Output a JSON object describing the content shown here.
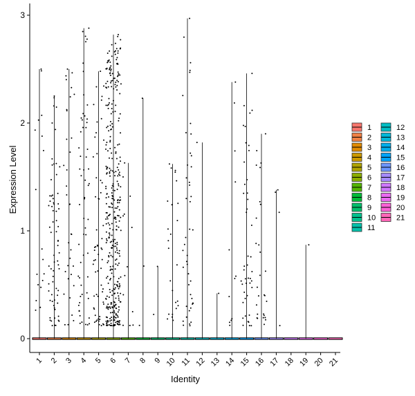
{
  "chart_data": {
    "type": "violin",
    "title": "",
    "xlabel": "Identity",
    "ylabel": "Expression Level",
    "ylim": [
      0,
      3
    ],
    "yticks": [
      0,
      1,
      2,
      3
    ],
    "categories": [
      "1",
      "2",
      "3",
      "4",
      "5",
      "6",
      "7",
      "8",
      "9",
      "10",
      "11",
      "12",
      "13",
      "14",
      "15",
      "16",
      "17",
      "18",
      "19",
      "20",
      "21"
    ],
    "max_expression": [
      2.5,
      2.25,
      2.5,
      2.88,
      2.48,
      2.82,
      1.63,
      2.23,
      0.67,
      1.62,
      2.97,
      1.82,
      0.42,
      2.38,
      2.46,
      1.9,
      1.38,
      0.0,
      0.87,
      0.0,
      0.0
    ],
    "point_density": [
      18,
      70,
      35,
      60,
      60,
      380,
      14,
      3,
      2,
      25,
      45,
      1,
      1,
      12,
      45,
      28,
      4,
      0,
      1,
      0,
      0
    ],
    "colors": [
      "#F8766D",
      "#EE8044",
      "#DF8A00",
      "#C99800",
      "#AEA200",
      "#8AAC00",
      "#53B400",
      "#00BA38",
      "#00BE6C",
      "#00C08D",
      "#00C0AA",
      "#00BDC4",
      "#00B7D8",
      "#00AEEB",
      "#00A3F9",
      "#6C96FF",
      "#A58AFF",
      "#CF78FF",
      "#EA6AF1",
      "#FB61D7",
      "#FF67B8"
    ],
    "legend": {
      "position": "right",
      "columns": [
        [
          "1",
          "2",
          "3",
          "4",
          "5",
          "6",
          "7",
          "8",
          "9",
          "10",
          "11"
        ],
        [
          "12",
          "13",
          "14",
          "15",
          "16",
          "17",
          "18",
          "19",
          "20",
          "21"
        ]
      ]
    }
  }
}
